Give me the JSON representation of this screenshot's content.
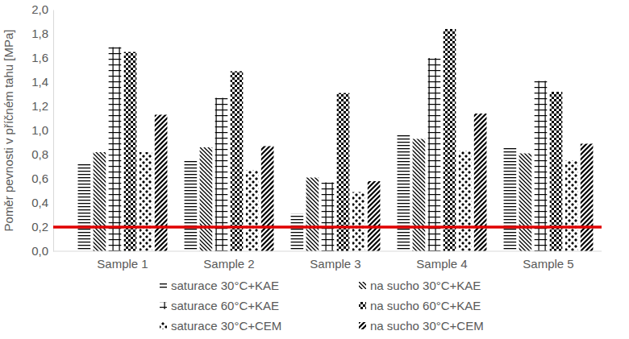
{
  "chart_data": {
    "type": "bar",
    "y_label": "Poměr pevnosti v příčném tahu [MPa]",
    "categories": [
      "Sample 1",
      "Sample 2",
      "Sample 3",
      "Sample 4",
      "Sample 5"
    ],
    "series": [
      {
        "name": "saturace 30°C+KAE",
        "color": "#000000",
        "values": [
          0.72,
          0.75,
          0.31,
          0.97,
          0.86
        ]
      },
      {
        "name": "na sucho 30°C+KAE",
        "color": "#000000",
        "values": [
          0.82,
          0.86,
          0.61,
          0.93,
          0.81
        ]
      },
      {
        "name": "saturace 60°C+KAE",
        "color": "#000000",
        "values": [
          1.69,
          1.27,
          0.57,
          1.6,
          1.41
        ]
      },
      {
        "name": "na sucho 60°C+KAE",
        "color": "#000000",
        "values": [
          1.65,
          1.49,
          1.31,
          1.84,
          1.32
        ]
      },
      {
        "name": "saturace 30°C+CEM",
        "color": "#000000",
        "values": [
          0.82,
          0.67,
          0.49,
          0.83,
          0.75
        ]
      },
      {
        "name": "na sucho 30°C+CEM",
        "color": "#000000",
        "values": [
          1.13,
          0.87,
          0.58,
          1.14,
          0.89
        ]
      }
    ],
    "ylim": [
      0,
      2
    ],
    "yticks": [
      {
        "value": 0,
        "label": "0,0"
      },
      {
        "value": 0.2,
        "label": "0,2"
      },
      {
        "value": 0.4,
        "label": "0,4"
      },
      {
        "value": 0.6,
        "label": "0,6"
      },
      {
        "value": 0.8,
        "label": "0,8"
      },
      {
        "value": 1,
        "label": "1,0"
      },
      {
        "value": 1.2,
        "label": "1,2"
      },
      {
        "value": 1.4,
        "label": "1,4"
      },
      {
        "value": 1.6,
        "label": "1,6"
      },
      {
        "value": 1.8,
        "label": "1,8"
      },
      {
        "value": 2,
        "label": "2,0"
      }
    ],
    "reference_line": {
      "value": 0.2,
      "color": "#e00000"
    },
    "grid": false,
    "legend": "bottom"
  }
}
